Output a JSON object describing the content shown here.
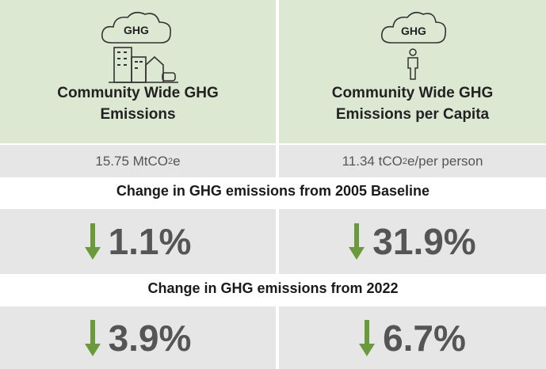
{
  "cards": [
    {
      "icon_label": "GHG",
      "title": "Community Wide GHG Emissions",
      "value": {
        "number": "15.75 MtCO",
        "subscript": "2",
        "unit": "e"
      }
    },
    {
      "icon_label": "GHG",
      "title": "Community Wide GHG Emissions per Capita",
      "value": {
        "number": "11.34 tCO",
        "subscript": "2",
        "unit": "e/per person"
      }
    }
  ],
  "sections": [
    {
      "heading": "Change in GHG emissions from 2005 Baseline",
      "changes": [
        "1.1%",
        "31.9%"
      ]
    },
    {
      "heading": "Change in GHG emissions from 2022",
      "changes": [
        "3.9%",
        "6.7%"
      ]
    }
  ]
}
